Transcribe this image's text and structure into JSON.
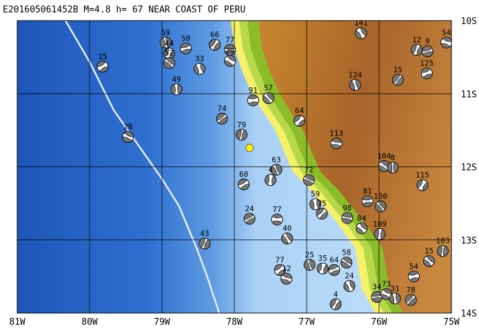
{
  "title": "E201605061452B M=4.8 h= 67 NEAR COAST OF PERU",
  "lon_labels": [
    {
      "value": -81,
      "label": "81W"
    },
    {
      "value": -80,
      "label": "80W"
    },
    {
      "value": -79,
      "label": "79W"
    },
    {
      "value": -78,
      "label": "78W"
    },
    {
      "value": -77,
      "label": "77W"
    },
    {
      "value": -76,
      "label": "76W"
    },
    {
      "value": -75,
      "label": "75W"
    }
  ],
  "lat_labels": [
    {
      "value": -10,
      "label": "10S"
    },
    {
      "value": -11,
      "label": "11S"
    },
    {
      "value": -12,
      "label": "12S"
    },
    {
      "value": -13,
      "label": "13S"
    },
    {
      "value": -14,
      "label": "14S"
    }
  ],
  "events": [
    {
      "label": "15",
      "lon": -79.82,
      "lat": -10.63
    },
    {
      "label": "28",
      "lon": -79.47,
      "lat": -11.59
    },
    {
      "label": "59",
      "lon": -78.95,
      "lat": -10.3
    },
    {
      "label": "44",
      "lon": -78.9,
      "lat": -10.45
    },
    {
      "label": "50",
      "lon": -78.67,
      "lat": -10.38
    },
    {
      "label": "52",
      "lon": -78.9,
      "lat": -10.58
    },
    {
      "label": "33",
      "lon": -78.48,
      "lat": -10.66
    },
    {
      "label": "66",
      "lon": -78.27,
      "lat": -10.33
    },
    {
      "label": "77",
      "lon": -78.06,
      "lat": -10.4
    },
    {
      "label": "29",
      "lon": -78.06,
      "lat": -10.55
    },
    {
      "label": "49",
      "lon": -78.8,
      "lat": -10.94
    },
    {
      "label": "74",
      "lon": -78.17,
      "lat": -11.34
    },
    {
      "label": "91",
      "lon": -77.74,
      "lat": -11.09
    },
    {
      "label": "57",
      "lon": -77.53,
      "lat": -11.06
    },
    {
      "label": "79",
      "lon": -77.9,
      "lat": -11.56
    },
    {
      "label": "64",
      "lon": -77.1,
      "lat": -11.37
    },
    {
      "label": "113",
      "lon": -76.59,
      "lat": -11.68
    },
    {
      "label": "63",
      "lon": -77.42,
      "lat": -12.04
    },
    {
      "label": "4",
      "lon": -77.5,
      "lat": -12.18
    },
    {
      "label": "60",
      "lon": -77.87,
      "lat": -12.24
    },
    {
      "label": "72",
      "lon": -76.97,
      "lat": -12.18
    },
    {
      "label": "141",
      "lon": -76.25,
      "lat": -10.17
    },
    {
      "label": "12",
      "lon": -75.48,
      "lat": -10.4
    },
    {
      "label": "9",
      "lon": -75.33,
      "lat": -10.42
    },
    {
      "label": "54",
      "lon": -75.07,
      "lat": -10.3
    },
    {
      "label": "124",
      "lon": -76.33,
      "lat": -10.88
    },
    {
      "label": "15",
      "lon": -75.74,
      "lat": -10.81
    },
    {
      "label": "125",
      "lon": -75.34,
      "lat": -10.72
    },
    {
      "label": "104",
      "lon": -75.93,
      "lat": -11.99
    },
    {
      "label": "8",
      "lon": -75.81,
      "lat": -12.01
    },
    {
      "label": "115",
      "lon": -75.4,
      "lat": -12.25
    },
    {
      "label": "81",
      "lon": -76.16,
      "lat": -12.47
    },
    {
      "label": "100",
      "lon": -75.98,
      "lat": -12.54
    },
    {
      "label": "59",
      "lon": -76.88,
      "lat": -12.51
    },
    {
      "label": "75",
      "lon": -76.79,
      "lat": -12.64
    },
    {
      "label": "98",
      "lon": -76.44,
      "lat": -12.7
    },
    {
      "label": "84",
      "lon": -76.24,
      "lat": -12.84
    },
    {
      "label": "109",
      "lon": -75.99,
      "lat": -12.92
    },
    {
      "label": "24",
      "lon": -77.79,
      "lat": -12.71
    },
    {
      "label": "77",
      "lon": -77.41,
      "lat": -12.72
    },
    {
      "label": "40",
      "lon": -77.27,
      "lat": -12.98
    },
    {
      "label": "43",
      "lon": -78.41,
      "lat": -13.05
    },
    {
      "label": "77",
      "lon": -77.37,
      "lat": -13.41
    },
    {
      "label": "12",
      "lon": -77.28,
      "lat": -13.53
    },
    {
      "label": "25",
      "lon": -76.96,
      "lat": -13.34
    },
    {
      "label": "35",
      "lon": -76.78,
      "lat": -13.39
    },
    {
      "label": "64",
      "lon": -76.62,
      "lat": -13.41
    },
    {
      "label": "58",
      "lon": -76.45,
      "lat": -13.31
    },
    {
      "label": "24",
      "lon": -76.41,
      "lat": -13.63
    },
    {
      "label": "4",
      "lon": -76.6,
      "lat": -13.88
    },
    {
      "label": "34",
      "lon": -76.03,
      "lat": -13.78
    },
    {
      "label": "73",
      "lon": -75.9,
      "lat": -13.74
    },
    {
      "label": "31",
      "lon": -75.78,
      "lat": -13.8
    },
    {
      "label": "78",
      "lon": -75.56,
      "lat": -13.82
    },
    {
      "label": "54",
      "lon": -75.52,
      "lat": -13.5
    },
    {
      "label": "15",
      "lon": -75.31,
      "lat": -13.29
    },
    {
      "label": "103",
      "lon": -75.12,
      "lat": -13.15
    }
  ],
  "epicenter": {
    "lon": -77.79,
    "lat": -11.74
  }
}
